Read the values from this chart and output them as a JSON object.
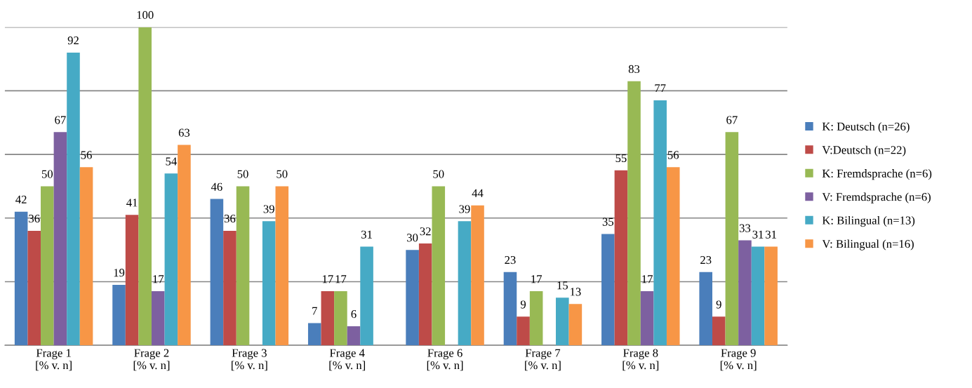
{
  "chart_data": {
    "type": "bar",
    "categories": [
      "Frage 1\n[% v. n]",
      "Frage 2\n[% v. n]",
      "Frage 3\n[% v. n]",
      "Frage 4\n[% v. n]",
      "Frage 6\n[% v. n]",
      "Frage 7\n[% v. n]",
      "Frage 8\n[% v. n]",
      "Frage 9\n[% v. n]"
    ],
    "series": [
      {
        "name": "K: Deutsch (n=26)",
        "color": "#4a7ebb",
        "values": [
          42,
          19,
          46,
          7,
          30,
          23,
          35,
          23
        ]
      },
      {
        "name": "V:Deutsch (n=22)",
        "color": "#be4b48",
        "values": [
          36,
          41,
          36,
          17,
          32,
          9,
          55,
          9
        ]
      },
      {
        "name": "K: Fremdsprache (n=6)",
        "color": "#98b954",
        "values": [
          50,
          100,
          50,
          17,
          50,
          17,
          83,
          67
        ]
      },
      {
        "name": "V: Fremdsprache (n=6)",
        "color": "#7d60a0",
        "values": [
          67,
          17,
          null,
          6,
          null,
          null,
          17,
          33
        ]
      },
      {
        "name": "K: Bilingual (n=13)",
        "color": "#46aac5",
        "values": [
          92,
          54,
          39,
          31,
          39,
          15,
          77,
          31
        ]
      },
      {
        "name": "V: Bilingual (n=16)",
        "color": "#f79646",
        "values": [
          56,
          63,
          50,
          null,
          44,
          13,
          56,
          31
        ]
      }
    ],
    "ylim": [
      0,
      100
    ],
    "yticks": [
      {
        "value": 0,
        "label": null
      },
      {
        "value": 20,
        "label": null
      },
      {
        "value": 40,
        "label": null
      },
      {
        "value": 60,
        "label": null
      },
      {
        "value": 80,
        "label": null
      },
      {
        "value": 100,
        "label": null
      }
    ],
    "grid": "y",
    "legend": "right",
    "data_labels": true
  }
}
